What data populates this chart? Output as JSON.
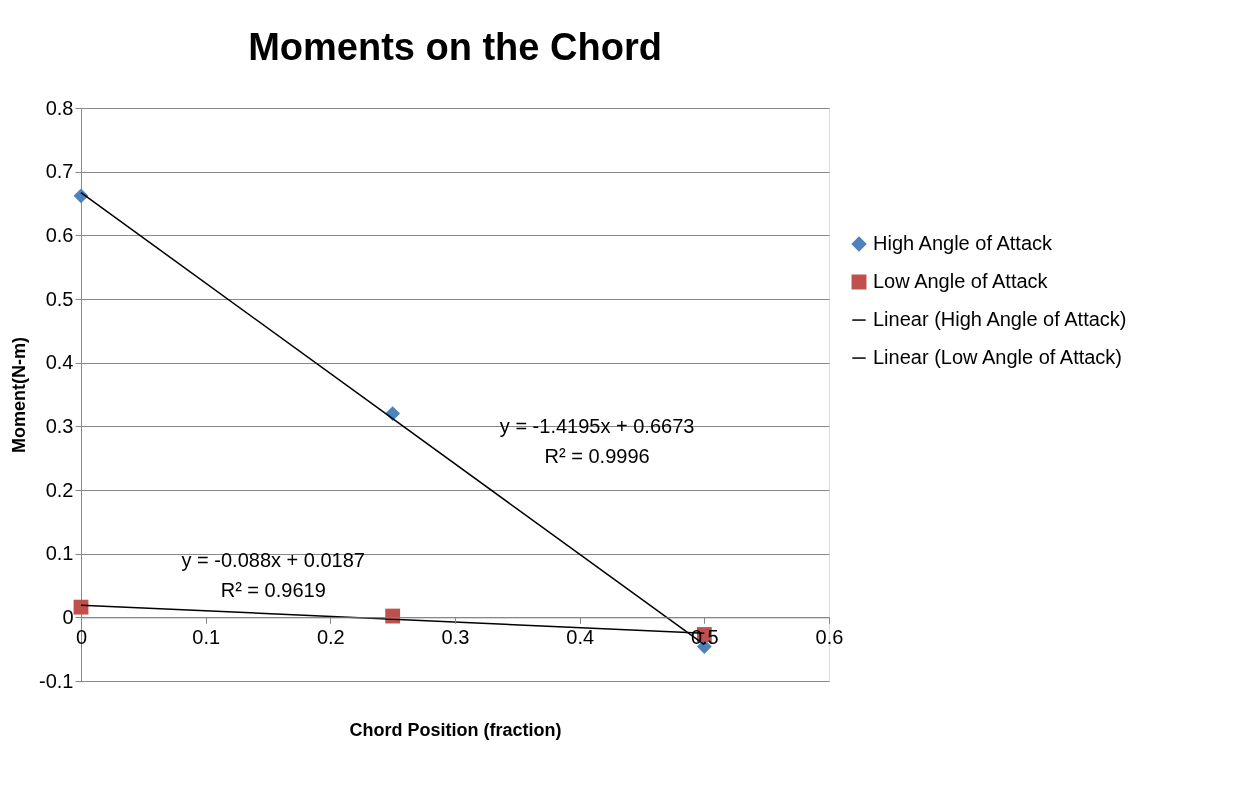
{
  "chart_data": {
    "type": "scatter",
    "title": "Moments on the Chord",
    "xlabel": "Chord Position (fraction)",
    "ylabel": "Moment(N-m)",
    "x": [
      0,
      0.25,
      0.5
    ],
    "series": [
      {
        "name": "High Angle of Attack",
        "marker": "diamond",
        "color": "#4f81bd",
        "values": [
          0.662,
          0.32,
          -0.046
        ]
      },
      {
        "name": "Low Angle of Attack",
        "marker": "square",
        "color": "#c0504d",
        "values": [
          0.016,
          0.002,
          -0.027
        ]
      },
      {
        "name": "Linear (High Angle of Attack)",
        "type": "line",
        "marker": "none",
        "color": "#000000",
        "values": [
          0.667,
          0.312,
          -0.043
        ]
      },
      {
        "name": "Linear (Low Angle of Attack)",
        "type": "line",
        "marker": "none",
        "color": "#000000",
        "values": [
          0.019,
          -0.003,
          -0.025
        ]
      }
    ],
    "annotations": [
      "y = -1.4195x + 0.6673\nR² = 0.9996",
      "y = -0.088x + 0.0187\nR² = 0.9619"
    ],
    "xlim": [
      0,
      0.6
    ],
    "xticks": [
      0,
      0.1,
      0.2,
      0.3,
      0.4,
      0.5,
      0.6
    ],
    "ylim": [
      -0.1,
      0.8
    ],
    "yticks": [
      -0.1,
      0,
      0.1,
      0.2,
      0.3,
      0.4,
      0.5,
      0.6,
      0.7,
      0.8
    ],
    "grid": "y",
    "legend": "right"
  }
}
